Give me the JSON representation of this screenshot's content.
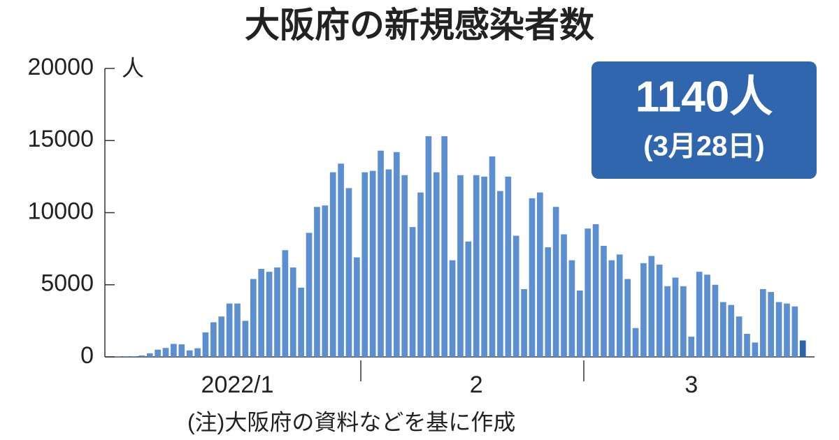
{
  "chart_data": {
    "type": "bar",
    "title": "大阪府の新規感染者数",
    "unit_label": "人",
    "highlight_value": "1140人",
    "highlight_date": "(3月28日)",
    "note": "(注)大阪府の資料などを基に作成",
    "categories": [
      null,
      null,
      null,
      null,
      null,
      null,
      null,
      null,
      null,
      null,
      null,
      null,
      null,
      null,
      null,
      "2022/1",
      null,
      null,
      null,
      null,
      null,
      null,
      null,
      null,
      null,
      null,
      null,
      null,
      null,
      null,
      null,
      null,
      null,
      null,
      null,
      null,
      null,
      null,
      null,
      null,
      null,
      null,
      null,
      null,
      null,
      "2",
      null,
      null,
      null,
      null,
      null,
      null,
      null,
      null,
      null,
      null,
      null,
      null,
      null,
      null,
      null,
      null,
      null,
      null,
      null,
      null,
      null,
      null,
      null,
      null,
      null,
      null,
      "3",
      null,
      null,
      null,
      null,
      null,
      null,
      null,
      null,
      null,
      null,
      null,
      null,
      null,
      null
    ],
    "values": [
      30,
      40,
      50,
      100,
      250,
      500,
      620,
      900,
      870,
      450,
      600,
      1700,
      2400,
      2800,
      3700,
      3700,
      2500,
      5400,
      6100,
      5900,
      6200,
      7400,
      6200,
      4800,
      8600,
      10400,
      10500,
      12800,
      13400,
      11700,
      6900,
      12800,
      12900,
      14300,
      13000,
      14200,
      12600,
      9000,
      11400,
      15300,
      12800,
      15300,
      6700,
      12600,
      8000,
      12600,
      12500,
      13900,
      11500,
      12500,
      8400,
      4700,
      11000,
      11400,
      7600,
      10400,
      8500,
      6700,
      4600,
      8900,
      9200,
      7700,
      6700,
      7100,
      5400,
      2000,
      6500,
      7000,
      6400,
      4900,
      5500,
      4900,
      1400,
      5900,
      5700,
      5000,
      3800,
      3600,
      2800,
      1600,
      1000,
      4700,
      4500,
      3800,
      3700,
      3500,
      1140
    ],
    "color": "#5b8fd1",
    "highlight_color": "#2b62ab",
    "ylim": [
      0,
      20000
    ],
    "yticks": [
      0,
      5000,
      10000,
      15000,
      20000
    ]
  }
}
